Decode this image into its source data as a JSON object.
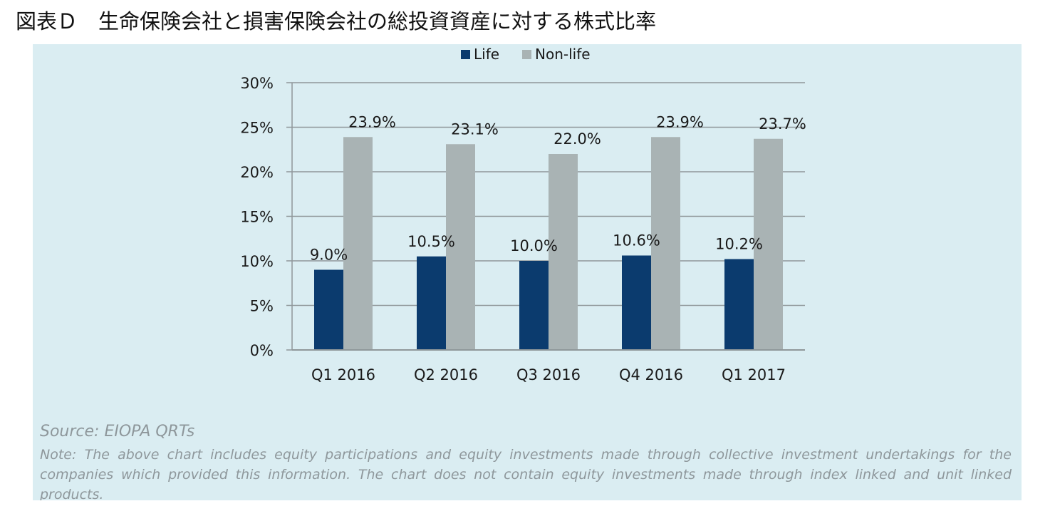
{
  "figure": {
    "title": "図表Ｄ　生命保険会社と損害保険会社の総投資資産に対する株式比率"
  },
  "chart_data": {
    "type": "bar",
    "categories": [
      "Q1 2016",
      "Q2 2016",
      "Q3 2016",
      "Q4 2016",
      "Q1 2017"
    ],
    "series": [
      {
        "name": "Life",
        "color": "#0b3b6e",
        "values": [
          9.0,
          10.5,
          10.0,
          10.6,
          10.2
        ],
        "labels": [
          "9.0%",
          "10.5%",
          "10.0%",
          "10.6%",
          "10.2%"
        ]
      },
      {
        "name": "Non-life",
        "color": "#a9b3b4",
        "values": [
          23.9,
          23.1,
          22.0,
          23.9,
          23.7
        ],
        "labels": [
          "23.9%",
          "23.1%",
          "22.0%",
          "23.9%",
          "23.7%"
        ]
      }
    ],
    "ylim": [
      0,
      30
    ],
    "yticks": [
      0,
      5,
      10,
      15,
      20,
      25,
      30
    ],
    "ytick_labels": [
      "0%",
      "5%",
      "10%",
      "15%",
      "20%",
      "25%",
      "30%"
    ],
    "grid": true,
    "legend_position": "top-center"
  },
  "footer": {
    "source": "Source: EIOPA QRTs",
    "note": "Note: The above chart includes equity participations and equity investments made through collective investment undertakings for the companies which provided this information. The chart does not contain equity investments made through index linked and unit linked products."
  }
}
